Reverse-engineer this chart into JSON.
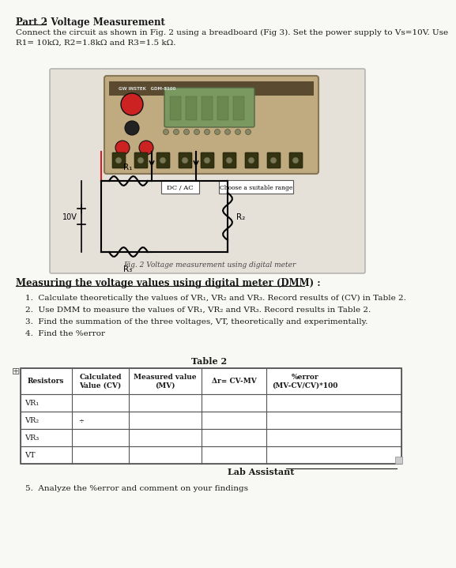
{
  "title_part1": "Part 2",
  "title_part2": ": Voltage Measurement",
  "intro_line1": "Connect the circuit as shown in Fig. 2 using a breadboard (Fig 3). Set the power supply to Vs=10V. Use",
  "intro_line2": "R1= 10kΩ, R2=1.8kΩ and R3=1.5 kΩ.",
  "fig_caption": "Fig. 2 Voltage measurement using digital meter",
  "section_title": "Measuring the voltage values using digital meter (DMM) :",
  "steps": [
    "Calculate theoretically the values of VR₁, VR₂ and VR₃. Record results of (CV) in Table 2.",
    "Use DMM to measure the values of VR₁, VR₂ and VR₃. Record results in Table 2.",
    "Find the summation of the three voltages, VT, theoretically and experimentally.",
    "Find the %error"
  ],
  "table_title": "Table 2",
  "table_headers": [
    "Resistors",
    "Calculated\nValue (CV)",
    "Measured value\n(MV)",
    "Δr= CV-MV",
    "%error\n(MV-CV/CV)*100"
  ],
  "table_rows": [
    "VR₁",
    "VR₂",
    "VR₃",
    "VT"
  ],
  "step5": "5.  Analyze the %error and comment on your findings",
  "lab_assistant": "Lab Assistant",
  "bg_color": "#f8f8f4",
  "text_color": "#1a1a1a",
  "table_line_color": "#555555"
}
